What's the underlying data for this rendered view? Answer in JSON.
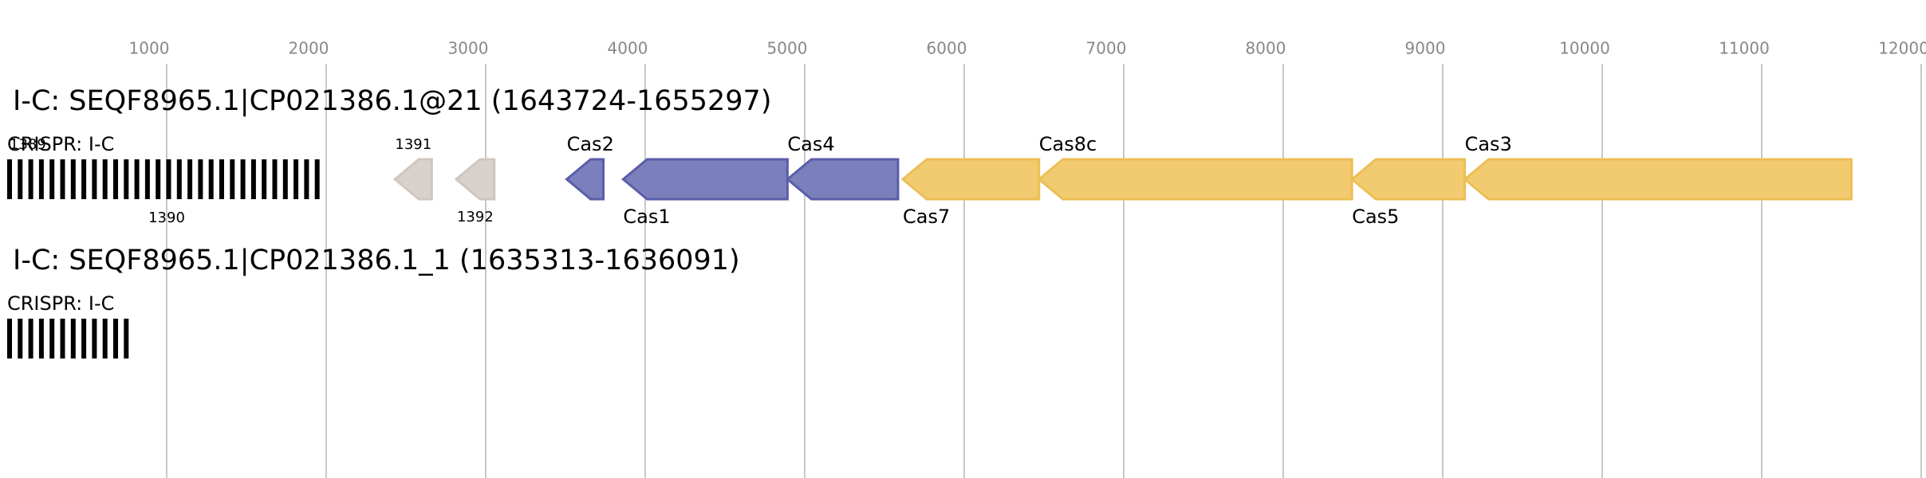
{
  "axis": {
    "ticks": [
      1000,
      2000,
      3000,
      4000,
      5000,
      6000,
      7000,
      8000,
      9000,
      10000,
      11000,
      12000
    ]
  },
  "tracks": [
    {
      "title": "I-C: SEQF8965.1|CP021386.1@21 (1643724-1655297)",
      "crispr": {
        "label": "CRISPR: I-C",
        "start": 0,
        "end": 1992,
        "labels": [
          "1389",
          "1390"
        ]
      },
      "genes": [
        {
          "label": "1391",
          "start": 2431,
          "end": 2662,
          "fill": "#d9d1cb",
          "stroke": "#cfc6bf"
        },
        {
          "label": "1392",
          "start": 2815,
          "end": 3054,
          "fill": "#d9d1cb",
          "stroke": "#cfc6bf"
        },
        {
          "label": "Cas2",
          "start": 3508,
          "end": 3738,
          "fill": "#7b7fbb",
          "stroke": "#5a5ea8"
        },
        {
          "label": "Cas1",
          "start": 3862,
          "end": 4892,
          "fill": "#7b7fbb",
          "stroke": "#5a5ea8"
        },
        {
          "label": "Cas4",
          "start": 4892,
          "end": 5585,
          "fill": "#7b7fbb",
          "stroke": "#5a5ea8"
        },
        {
          "label": "Cas7",
          "start": 5615,
          "end": 6469,
          "fill": "#f2cb70",
          "stroke": "#ecbf55"
        },
        {
          "label": "Cas8c",
          "start": 6469,
          "end": 8431,
          "fill": "#f2cb70",
          "stroke": "#ecbf55"
        },
        {
          "label": "Cas5",
          "start": 8431,
          "end": 9138,
          "fill": "#f2cb70",
          "stroke": "#ecbf55"
        },
        {
          "label": "Cas3",
          "start": 9138,
          "end": 11562,
          "fill": "#f2cb70",
          "stroke": "#ecbf55"
        }
      ]
    },
    {
      "title": "I-C: SEQF8965.1|CP021386.1_1 (1635313-1636091)",
      "crispr": {
        "label": "CRISPR: I-C",
        "start": 0,
        "end": 777,
        "labels": []
      },
      "genes": []
    }
  ]
}
